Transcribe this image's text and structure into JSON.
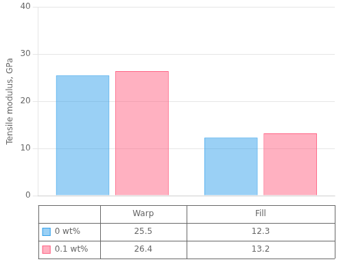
{
  "chart_data": {
    "type": "bar",
    "categories": [
      "Warp",
      "Fill"
    ],
    "series": [
      {
        "name": "0 wt%",
        "values": [
          25.5,
          12.3
        ]
      },
      {
        "name": "0.1 wt%",
        "values": [
          26.4,
          13.2
        ]
      }
    ],
    "ylabel": "Tensile modulus, GPa",
    "ylim": [
      0,
      40
    ],
    "yticks": [
      0,
      10,
      20,
      30,
      40
    ],
    "grid": true,
    "data_labels": true,
    "tick_labels": "y"
  }
}
